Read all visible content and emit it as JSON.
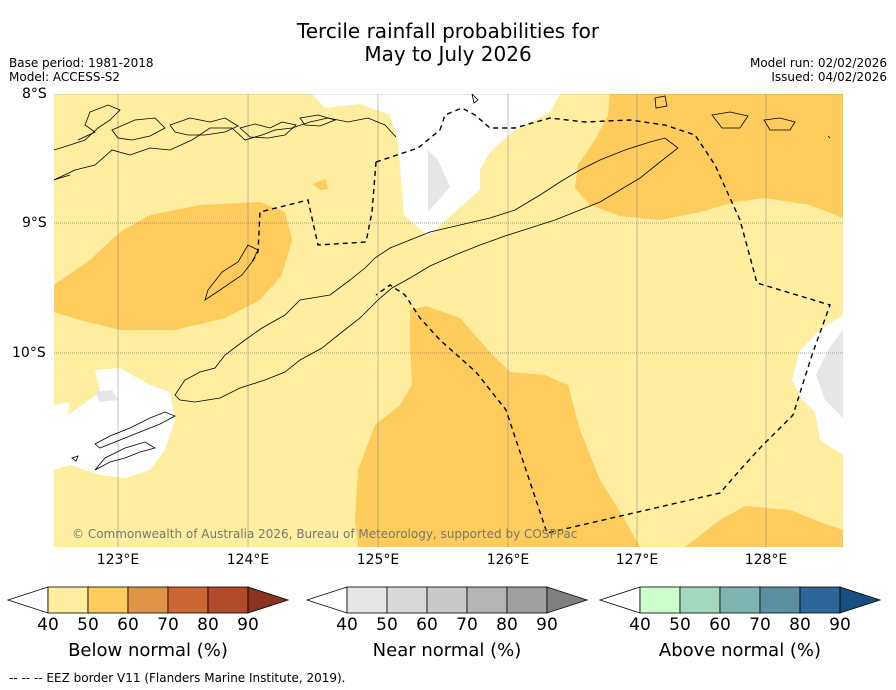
{
  "header": {
    "title_line1": "Tercile rainfall probabilities for",
    "title_line2": "May to July 2026",
    "base_period": "Base period: 1981-2018",
    "model": "Model: ACCESS-S2",
    "model_run": "Model run: 02/02/2026",
    "issued": "Issued: 04/02/2026"
  },
  "map": {
    "lat_labels": [
      "8°S",
      "9°S",
      "10°S"
    ],
    "lon_labels": [
      "123°E",
      "124°E",
      "125°E",
      "126°E",
      "127°E",
      "128°E"
    ],
    "copyright": "© Commonwealth of Australia 2026, Bureau of Meteorology, supported by COSPPac",
    "colors": {
      "below_50": "#ffeda0",
      "below_60": "#fecc5c",
      "near_50": "#e6e6e6",
      "ocean_background": "#ffffff",
      "coast": "#000000"
    }
  },
  "colorbars": [
    {
      "title": "Below normal (%)",
      "ticks": [
        "40",
        "50",
        "60",
        "70",
        "80",
        "90"
      ],
      "colors": [
        "#ffffff",
        "#ffeda0",
        "#fecc5c",
        "#e09448",
        "#cc6633",
        "#b04a28",
        "#8b3320"
      ]
    },
    {
      "title": "Near normal (%)",
      "ticks": [
        "40",
        "50",
        "60",
        "70",
        "80",
        "90"
      ],
      "colors": [
        "#ffffff",
        "#e6e6e6",
        "#d9d9d9",
        "#c8c8c8",
        "#b4b4b4",
        "#a0a0a0",
        "#808080"
      ]
    },
    {
      "title": "Above normal (%)",
      "ticks": [
        "40",
        "50",
        "60",
        "70",
        "80",
        "90"
      ],
      "colors": [
        "#ffffff",
        "#ccffcc",
        "#a1d9c0",
        "#7fb5b0",
        "#5a8fa0",
        "#2e6699",
        "#184e80"
      ]
    }
  ],
  "footer": {
    "legend": "--  --  -- EEZ border V11 (Flanders Marine Institute, 2019)."
  }
}
